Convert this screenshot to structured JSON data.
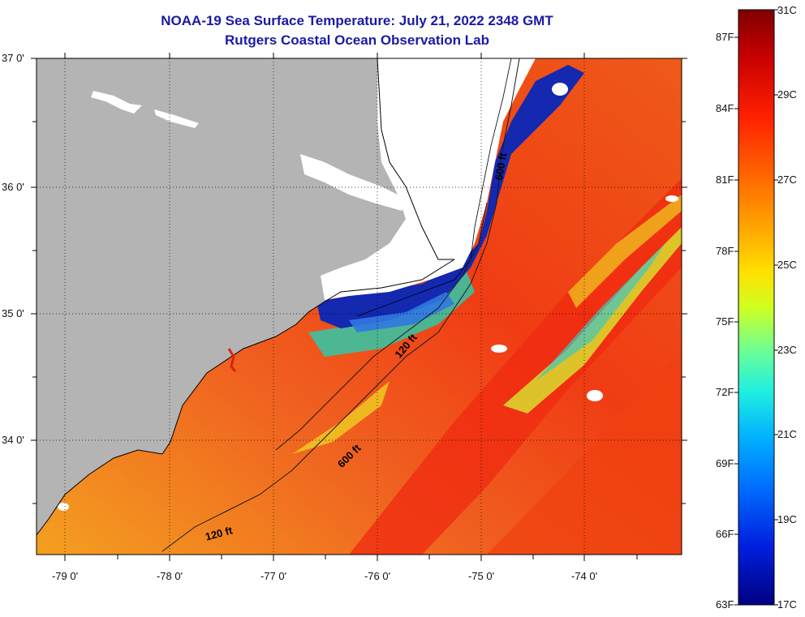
{
  "title": {
    "line1": "NOAA-19 Sea Surface Temperature:  July 21, 2022 2348 GMT",
    "line2": "Rutgers Coastal Ocean Observation Lab"
  },
  "map": {
    "lat_labels": [
      "37 0'",
      "36 0'",
      "35 0'",
      "34 0'"
    ],
    "lon_labels": [
      "-79 0'",
      "-78 0'",
      "-77 0'",
      "-76 0'",
      "-75 0'",
      "-74 0'"
    ],
    "isobath_labels": [
      "600 ft",
      "120 ft",
      "600 ft",
      "120 ft"
    ],
    "colors": {
      "land": "#b4b4b4",
      "cloud_mask": "#ffffff",
      "ocean_warm": "#f04018",
      "ocean_mid": "#f4a020",
      "ocean_cool": "#1030b0"
    }
  },
  "colorbar": {
    "fahrenheit_labels": [
      "87F",
      "84F",
      "81F",
      "78F",
      "75F",
      "72F",
      "69F",
      "66F",
      "63F"
    ],
    "celsius_labels": [
      "31C",
      "29C",
      "27C",
      "25C",
      "23C",
      "21C",
      "19C",
      "17C"
    ],
    "scale_colors": [
      "#800000",
      "#c80000",
      "#ff2000",
      "#ff6000",
      "#ff9a00",
      "#ffd000",
      "#f0ff10",
      "#b0ff40",
      "#60ffa0",
      "#20f0e0",
      "#00b0ff",
      "#0070ff",
      "#0030ff",
      "#0010c0",
      "#000080"
    ]
  }
}
